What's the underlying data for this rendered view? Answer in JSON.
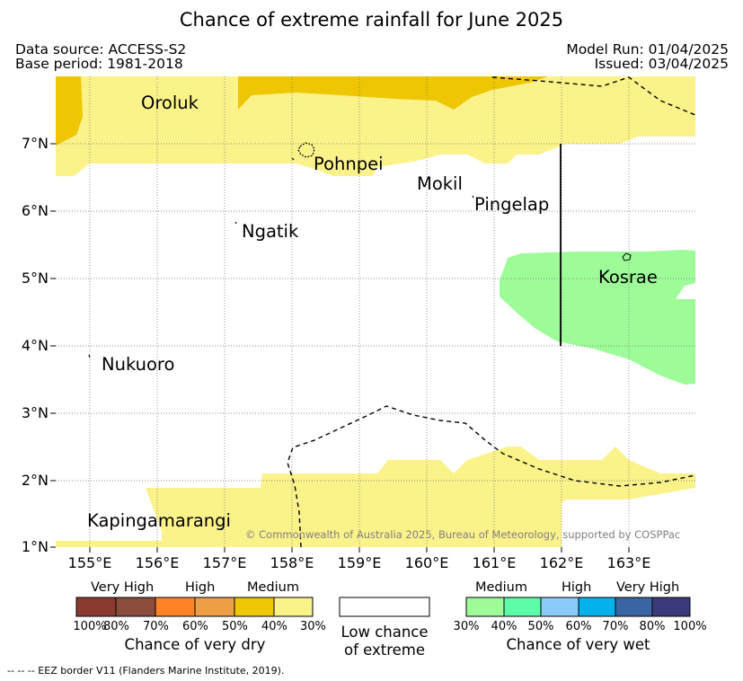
{
  "title": "Chance of extreme rainfall for June 2025",
  "header": {
    "data_source": "Data source: ACCESS-S2",
    "base_period": "Base period: 1981-2018",
    "model_run": "Model Run: 01/04/2025",
    "issued": "Issued: 03/04/2025"
  },
  "map": {
    "x_ticks": [
      "155°E",
      "156°E",
      "157°E",
      "158°E",
      "159°E",
      "160°E",
      "161°E",
      "162°E",
      "163°E"
    ],
    "y_ticks": [
      "7°N",
      "6°N",
      "5°N",
      "4°N",
      "3°N",
      "2°N",
      "1°N"
    ],
    "places": {
      "oroluk": "Oroluk",
      "pohnpei": "Pohnpei",
      "mokil": "Mokil",
      "pingelap": "Pingelap",
      "ngatik": "Ngatik",
      "kosrae": "Kosrae",
      "nukuoro": "Nukuoro",
      "kapingamarangi": "Kapingamarangi"
    },
    "copyright": "© Commonwealth of Australia 2025, Bureau of Meteorology, supported by COSPPac"
  },
  "legend": {
    "dry": {
      "categories": [
        "Very High",
        "High",
        "Medium"
      ],
      "ticks": [
        "100%",
        "80%",
        "70%",
        "60%",
        "50%",
        "40%",
        "30%"
      ],
      "colors": [
        "#8b3a2f",
        "#8b4c3c",
        "#fd8326",
        "#ee9e45",
        "#eec603",
        "#fbf28a"
      ],
      "title": "Chance of very dry"
    },
    "low": {
      "title_line1": "Low chance",
      "title_line2": "of extreme"
    },
    "wet": {
      "categories": [
        "Medium",
        "High",
        "Very High"
      ],
      "ticks": [
        "30%",
        "40%",
        "50%",
        "60%",
        "70%",
        "80%",
        "100%"
      ],
      "colors": [
        "#9dfc98",
        "#5cfca8",
        "#8acbf9",
        "#03b1ed",
        "#3965a4",
        "#3a3b7c"
      ],
      "title": "Chance of very wet"
    }
  },
  "footnote": "--  --  -- EEZ border V11 (Flanders Marine Institute, 2019)."
}
